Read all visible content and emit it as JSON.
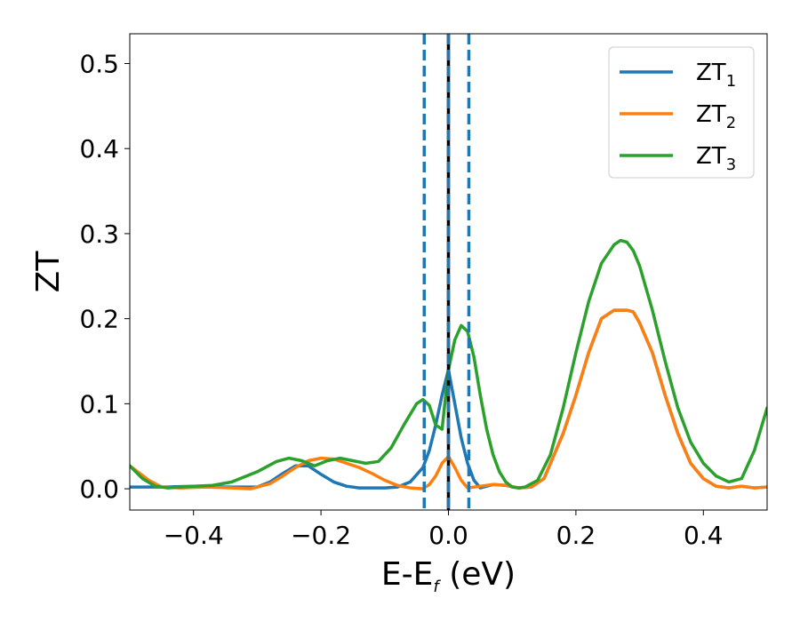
{
  "chart_data": {
    "type": "line",
    "title": "",
    "xlabel_main": "E-E",
    "xlabel_sub": "f",
    "xlabel_unit": " (eV)",
    "ylabel": "ZT",
    "xlim": [
      -0.5,
      0.5
    ],
    "ylim": [
      -0.025,
      0.535
    ],
    "xticks": [
      -0.4,
      -0.2,
      0.0,
      0.2,
      0.4
    ],
    "xtick_labels": [
      "−0.4",
      "−0.2",
      "0.0",
      "0.2",
      "0.4"
    ],
    "yticks": [
      0.0,
      0.1,
      0.2,
      0.3,
      0.4,
      0.5
    ],
    "ytick_labels": [
      "0.0",
      "0.1",
      "0.2",
      "0.3",
      "0.4",
      "0.5"
    ],
    "grid": false,
    "legend_position": "top-right",
    "vlines": [
      {
        "x": -0.038,
        "style": "dashed",
        "color": "#1f77b4"
      },
      {
        "x": 0.032,
        "style": "dashed",
        "color": "#1f77b4"
      },
      {
        "x": 0.0,
        "style": "solid",
        "color": "#000000"
      },
      {
        "x": 0.0,
        "style": "dashed",
        "color": "#1f77b4"
      }
    ],
    "series": [
      {
        "name": "ZT",
        "sub": "1",
        "color": "#1f77b4",
        "x": [
          -0.5,
          -0.45,
          -0.4,
          -0.35,
          -0.3,
          -0.28,
          -0.26,
          -0.24,
          -0.22,
          -0.2,
          -0.18,
          -0.16,
          -0.14,
          -0.12,
          -0.1,
          -0.08,
          -0.06,
          -0.04,
          -0.03,
          -0.02,
          -0.01,
          0.0,
          0.01,
          0.02,
          0.03,
          0.04,
          0.05,
          0.07,
          0.09,
          0.11,
          0.13,
          0.15,
          0.18,
          0.2,
          0.22,
          0.24,
          0.26,
          0.28,
          0.29,
          0.3,
          0.32,
          0.34,
          0.36,
          0.38,
          0.4,
          0.42,
          0.44,
          0.46,
          0.48,
          0.5
        ],
        "y": [
          0.002,
          0.002,
          0.003,
          0.002,
          0.002,
          0.008,
          0.018,
          0.027,
          0.027,
          0.017,
          0.008,
          0.003,
          0.001,
          0.001,
          0.001,
          0.002,
          0.008,
          0.025,
          0.045,
          0.075,
          0.11,
          0.14,
          0.1,
          0.06,
          0.03,
          0.01,
          0.001,
          0.005,
          0.004,
          0.001,
          0.002,
          0.012,
          0.065,
          0.11,
          0.16,
          0.2,
          0.21,
          0.21,
          0.208,
          0.195,
          0.16,
          0.11,
          0.065,
          0.03,
          0.012,
          0.003,
          0.001,
          0.003,
          0.001,
          0.002
        ]
      },
      {
        "name": "ZT",
        "sub": "2",
        "color": "#ff7f0e",
        "x": [
          -0.5,
          -0.47,
          -0.45,
          -0.42,
          -0.38,
          -0.34,
          -0.31,
          -0.28,
          -0.26,
          -0.24,
          -0.22,
          -0.2,
          -0.18,
          -0.16,
          -0.14,
          -0.12,
          -0.1,
          -0.08,
          -0.06,
          -0.04,
          -0.03,
          -0.02,
          -0.01,
          0.0,
          0.01,
          0.02,
          0.03,
          0.05,
          0.07,
          0.09,
          0.11,
          0.13,
          0.15,
          0.18,
          0.2,
          0.22,
          0.24,
          0.26,
          0.28,
          0.29,
          0.3,
          0.32,
          0.34,
          0.36,
          0.38,
          0.4,
          0.42,
          0.44,
          0.46,
          0.48,
          0.5
        ],
        "y": [
          0.027,
          0.01,
          0.002,
          0.001,
          0.002,
          0.001,
          0.0,
          0.006,
          0.015,
          0.025,
          0.033,
          0.036,
          0.035,
          0.03,
          0.025,
          0.018,
          0.01,
          0.004,
          0.001,
          0.0,
          0.005,
          0.015,
          0.03,
          0.038,
          0.025,
          0.01,
          0.001,
          0.003,
          0.005,
          0.004,
          0.001,
          0.002,
          0.012,
          0.065,
          0.11,
          0.16,
          0.2,
          0.21,
          0.21,
          0.208,
          0.195,
          0.16,
          0.11,
          0.065,
          0.03,
          0.012,
          0.003,
          0.001,
          0.003,
          0.001,
          0.002
        ]
      },
      {
        "name": "ZT",
        "sub": "3",
        "color": "#2ca02c",
        "x": [
          -0.5,
          -0.48,
          -0.46,
          -0.44,
          -0.42,
          -0.4,
          -0.37,
          -0.34,
          -0.3,
          -0.27,
          -0.25,
          -0.23,
          -0.21,
          -0.19,
          -0.17,
          -0.15,
          -0.13,
          -0.11,
          -0.09,
          -0.07,
          -0.05,
          -0.04,
          -0.03,
          -0.02,
          -0.01,
          0.0,
          0.01,
          0.02,
          0.03,
          0.04,
          0.05,
          0.06,
          0.07,
          0.08,
          0.09,
          0.1,
          0.11,
          0.12,
          0.14,
          0.16,
          0.18,
          0.2,
          0.22,
          0.24,
          0.26,
          0.27,
          0.28,
          0.29,
          0.3,
          0.32,
          0.34,
          0.36,
          0.38,
          0.4,
          0.42,
          0.44,
          0.46,
          0.48,
          0.5
        ],
        "y": [
          0.027,
          0.012,
          0.003,
          0.001,
          0.002,
          0.003,
          0.004,
          0.008,
          0.02,
          0.032,
          0.036,
          0.033,
          0.027,
          0.033,
          0.036,
          0.033,
          0.03,
          0.032,
          0.048,
          0.075,
          0.1,
          0.105,
          0.098,
          0.075,
          0.07,
          0.14,
          0.175,
          0.192,
          0.185,
          0.155,
          0.11,
          0.07,
          0.04,
          0.02,
          0.008,
          0.002,
          0.001,
          0.002,
          0.01,
          0.04,
          0.095,
          0.16,
          0.22,
          0.265,
          0.287,
          0.292,
          0.29,
          0.28,
          0.262,
          0.21,
          0.15,
          0.095,
          0.055,
          0.03,
          0.015,
          0.008,
          0.012,
          0.045,
          0.095
        ]
      }
    ]
  }
}
